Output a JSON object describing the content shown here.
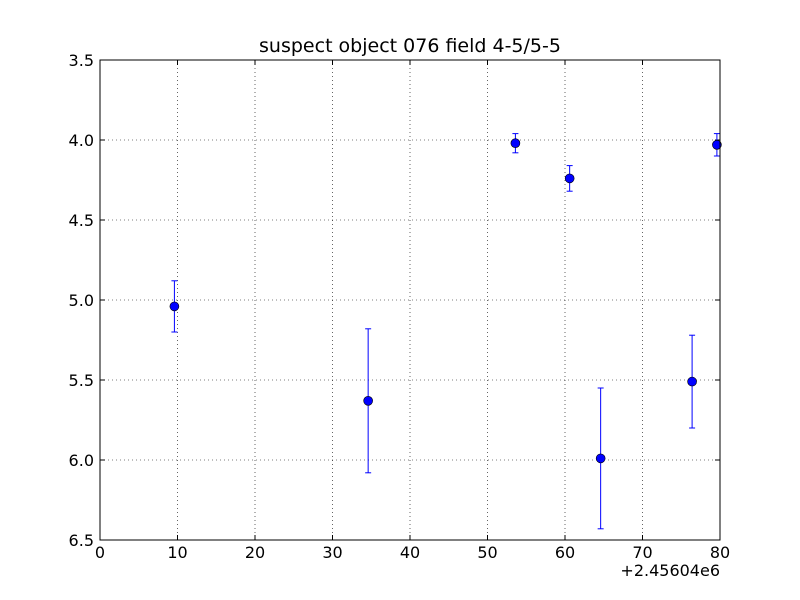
{
  "chart_data": {
    "type": "scatter",
    "title": "suspect object 076 field 4-5/5-5",
    "xlabel": "",
    "ylabel": "",
    "x_offset_label": "+2.45604e6",
    "xlim": [
      0,
      80
    ],
    "ylim": [
      6.5,
      3.5
    ],
    "y_inverted": true,
    "grid": true,
    "x_ticks": [
      0,
      10,
      20,
      30,
      40,
      50,
      60,
      70,
      80
    ],
    "x_tick_labels": [
      "0",
      "10",
      "20",
      "30",
      "40",
      "50",
      "60",
      "70",
      "80"
    ],
    "y_ticks": [
      3.5,
      4.0,
      4.5,
      5.0,
      5.5,
      6.0,
      6.5
    ],
    "y_tick_labels": [
      "3.5",
      "4.0",
      "4.5",
      "5.0",
      "5.5",
      "6.0",
      "6.5"
    ],
    "series": [
      {
        "color": "#0000ff",
        "marker": "circle",
        "points": [
          {
            "x": 9.6,
            "y": 5.04,
            "err": 0.16
          },
          {
            "x": 34.6,
            "y": 5.63,
            "err": 0.45
          },
          {
            "x": 53.6,
            "y": 4.02,
            "err": 0.06
          },
          {
            "x": 60.6,
            "y": 4.24,
            "err": 0.08
          },
          {
            "x": 64.6,
            "y": 5.99,
            "err": 0.44
          },
          {
            "x": 76.4,
            "y": 5.51,
            "err": 0.29
          },
          {
            "x": 79.6,
            "y": 4.03,
            "err": 0.07
          }
        ]
      }
    ]
  }
}
